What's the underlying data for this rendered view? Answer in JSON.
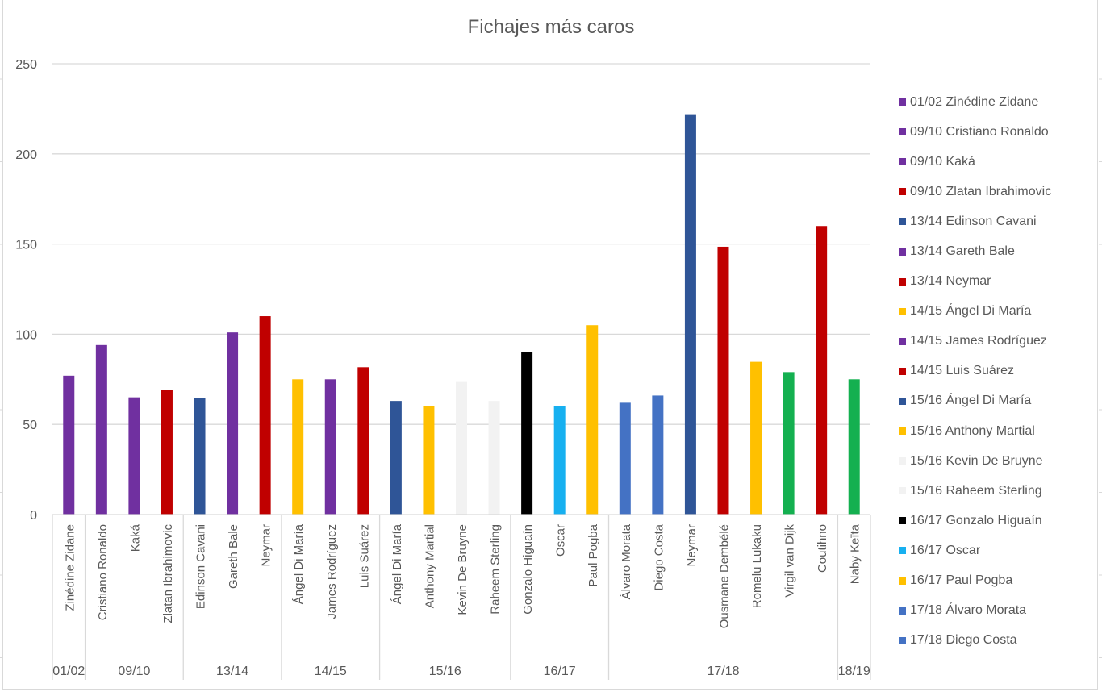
{
  "chart_data": {
    "type": "bar",
    "title": "Fichajes más caros",
    "xlabel": "",
    "ylabel": "",
    "ylim": [
      0,
      250
    ],
    "yticks": [
      "0",
      "50",
      "100",
      "150",
      "200",
      "250"
    ],
    "grid": true,
    "legend_position": "right",
    "groups": [
      {
        "label": "01/02",
        "count": 1
      },
      {
        "label": "09/10",
        "count": 3
      },
      {
        "label": "13/14",
        "count": 3
      },
      {
        "label": "14/15",
        "count": 3
      },
      {
        "label": "15/16",
        "count": 4
      },
      {
        "label": "16/17",
        "count": 3
      },
      {
        "label": "17/18",
        "count": 7
      },
      {
        "label": "18/19",
        "count": 1
      }
    ],
    "bars": [
      {
        "season": "01/02",
        "player": "Zinédine Zidane",
        "value": 77,
        "color": "#7030a0"
      },
      {
        "season": "09/10",
        "player": "Cristiano Ronaldo",
        "value": 94,
        "color": "#7030a0"
      },
      {
        "season": "09/10",
        "player": "Kaká",
        "value": 65,
        "color": "#7030a0"
      },
      {
        "season": "09/10",
        "player": "Zlatan Ibrahimovic",
        "value": 69,
        "color": "#c00000"
      },
      {
        "season": "13/14",
        "player": "Edinson Cavani",
        "value": 64.5,
        "color": "#2f5597"
      },
      {
        "season": "13/14",
        "player": "Gareth Bale",
        "value": 101,
        "color": "#7030a0"
      },
      {
        "season": "13/14",
        "player": "Neymar",
        "value": 110,
        "color": "#c00000"
      },
      {
        "season": "14/15",
        "player": "Ángel Di María",
        "value": 75,
        "color": "#ffc000"
      },
      {
        "season": "14/15",
        "player": "James Rodríguez",
        "value": 75,
        "color": "#7030a0"
      },
      {
        "season": "14/15",
        "player": "Luis Suárez",
        "value": 81.7,
        "color": "#c00000"
      },
      {
        "season": "15/16",
        "player": "Ángel Di María",
        "value": 63,
        "color": "#2f5597"
      },
      {
        "season": "15/16",
        "player": "Anthony Martial",
        "value": 60,
        "color": "#ffc000"
      },
      {
        "season": "15/16",
        "player": "Kevin De Bruyne",
        "value": 73.5,
        "color": "#f2f2f2"
      },
      {
        "season": "15/16",
        "player": "Raheem Sterling",
        "value": 63,
        "color": "#f2f2f2"
      },
      {
        "season": "16/17",
        "player": "Gonzalo Higuaín",
        "value": 90,
        "color": "#000000"
      },
      {
        "season": "16/17",
        "player": "Oscar",
        "value": 60,
        "color": "#17b0f0"
      },
      {
        "season": "16/17",
        "player": "Paul Pogba",
        "value": 105,
        "color": "#ffc000"
      },
      {
        "season": "17/18",
        "player": "Álvaro Morata",
        "value": 62,
        "color": "#4472c4"
      },
      {
        "season": "17/18",
        "player": "Diego Costa",
        "value": 66,
        "color": "#4472c4"
      },
      {
        "season": "17/18",
        "player": "Neymar",
        "value": 222,
        "color": "#2f5597"
      },
      {
        "season": "17/18",
        "player": "Ousmane Dembélé",
        "value": 148.5,
        "color": "#c00000"
      },
      {
        "season": "17/18",
        "player": "Romelu Lukaku",
        "value": 84.7,
        "color": "#ffc000"
      },
      {
        "season": "17/18",
        "player": "Virgil van Dijk",
        "value": 79,
        "color": "#14b050"
      },
      {
        "season": "17/18",
        "player": "Coutihno",
        "value": 160,
        "color": "#c00000"
      },
      {
        "season": "18/19",
        "player": "Naby Keïta",
        "value": 75,
        "color": "#14b050"
      }
    ],
    "legend": [
      {
        "label": "01/02 Zinédine Zidane",
        "color": "#7030a0"
      },
      {
        "label": "09/10 Cristiano Ronaldo",
        "color": "#7030a0"
      },
      {
        "label": "09/10 Kaká",
        "color": "#7030a0"
      },
      {
        "label": "09/10 Zlatan Ibrahimovic",
        "color": "#c00000"
      },
      {
        "label": "13/14 Edinson Cavani",
        "color": "#2f5597"
      },
      {
        "label": "13/14 Gareth Bale",
        "color": "#7030a0"
      },
      {
        "label": "13/14 Neymar",
        "color": "#c00000"
      },
      {
        "label": "14/15 Ángel Di María",
        "color": "#ffc000"
      },
      {
        "label": "14/15 James Rodríguez",
        "color": "#7030a0"
      },
      {
        "label": "14/15 Luis Suárez",
        "color": "#c00000"
      },
      {
        "label": "15/16 Ángel Di María",
        "color": "#2f5597"
      },
      {
        "label": "15/16 Anthony Martial",
        "color": "#ffc000"
      },
      {
        "label": "15/16 Kevin De Bruyne",
        "color": "#f2f2f2"
      },
      {
        "label": "15/16 Raheem Sterling",
        "color": "#f2f2f2"
      },
      {
        "label": "16/17 Gonzalo Higuaín",
        "color": "#000000"
      },
      {
        "label": "16/17 Oscar",
        "color": "#17b0f0"
      },
      {
        "label": "16/17 Paul Pogba",
        "color": "#ffc000"
      },
      {
        "label": "17/18 Álvaro Morata",
        "color": "#4472c4"
      },
      {
        "label": "17/18 Diego Costa",
        "color": "#4472c4"
      }
    ]
  }
}
